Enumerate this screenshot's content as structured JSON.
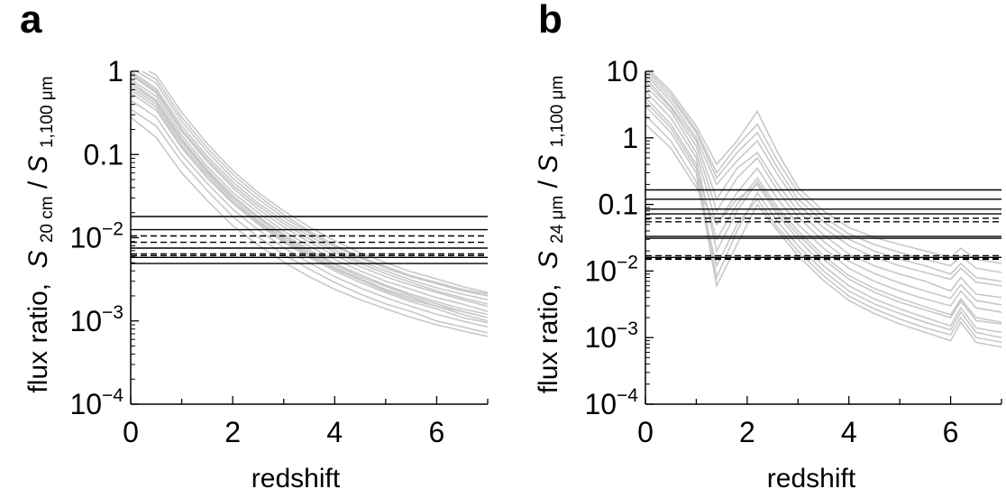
{
  "chart_data": [
    {
      "type": "line",
      "panel_label": "a",
      "xlabel": "redshift",
      "ylabel": {
        "prefix": "flux ratio,",
        "numerator_symbol": "S",
        "numerator_subscript": "20 cm",
        "denominator_symbol": "S",
        "denominator_subscript": "1,100 μm"
      },
      "xlim": [
        0,
        7
      ],
      "ylim": [
        0.0001,
        1
      ],
      "yscale": "log",
      "xticks": [
        0,
        2,
        4,
        6
      ],
      "yticks": [
        {
          "value": 1,
          "base": "1",
          "exp": ""
        },
        {
          "value": 0.1,
          "base": "0.1",
          "exp": ""
        },
        {
          "value": 0.01,
          "base": "10",
          "exp": "−2"
        },
        {
          "value": 0.001,
          "base": "10",
          "exp": "−3"
        },
        {
          "value": 0.0001,
          "base": "10",
          "exp": "−4"
        }
      ],
      "grid": false,
      "series_color": "#c8c8c8",
      "x": [
        0,
        0.5,
        1,
        1.5,
        2,
        2.5,
        3,
        3.5,
        4,
        4.5,
        5,
        5.5,
        6,
        6.5,
        7
      ],
      "series": [
        {
          "values": [
            1.2,
            0.8,
            0.28,
            0.12,
            0.058,
            0.032,
            0.019,
            0.012,
            0.0082,
            0.0059,
            0.0045,
            0.0035,
            0.0029,
            0.0024,
            0.0021
          ]
        },
        {
          "values": [
            1.0,
            0.62,
            0.22,
            0.095,
            0.047,
            0.026,
            0.016,
            0.0105,
            0.0072,
            0.0052,
            0.004,
            0.0031,
            0.0025,
            0.0021,
            0.0018
          ]
        },
        {
          "values": [
            0.9,
            0.55,
            0.19,
            0.082,
            0.04,
            0.022,
            0.0135,
            0.0089,
            0.0061,
            0.0045,
            0.0034,
            0.0027,
            0.0022,
            0.0018,
            0.0015
          ]
        },
        {
          "values": [
            0.8,
            0.5,
            0.17,
            0.072,
            0.035,
            0.02,
            0.012,
            0.0079,
            0.0055,
            0.004,
            0.003,
            0.0024,
            0.0019,
            0.0016,
            0.0013
          ]
        },
        {
          "values": [
            0.75,
            0.45,
            0.155,
            0.066,
            0.032,
            0.018,
            0.011,
            0.0072,
            0.0049,
            0.0036,
            0.0027,
            0.0021,
            0.0017,
            0.0014,
            0.0012
          ]
        },
        {
          "values": [
            0.65,
            0.4,
            0.14,
            0.06,
            0.029,
            0.016,
            0.0098,
            0.0064,
            0.0044,
            0.0032,
            0.0024,
            0.0019,
            0.0015,
            0.0013,
            0.0011
          ]
        },
        {
          "values": [
            0.55,
            0.34,
            0.12,
            0.052,
            0.026,
            0.0145,
            0.0088,
            0.0058,
            0.004,
            0.0029,
            0.0022,
            0.0017,
            0.0014,
            0.0011,
            0.00095
          ]
        },
        {
          "values": [
            0.45,
            0.28,
            0.1,
            0.045,
            0.022,
            0.0125,
            0.0076,
            0.005,
            0.0034,
            0.0025,
            0.0019,
            0.0015,
            0.0012,
            0.001,
            0.00085
          ]
        },
        {
          "values": [
            0.35,
            0.22,
            0.082,
            0.037,
            0.018,
            0.0102,
            0.0063,
            0.0042,
            0.0029,
            0.0021,
            0.0016,
            0.0013,
            0.001,
            0.00085,
            0.00072
          ]
        },
        {
          "values": [
            0.28,
            0.16,
            0.06,
            0.028,
            0.014,
            0.0082,
            0.0051,
            0.0034,
            0.0024,
            0.0018,
            0.0014,
            0.0011,
            0.0009,
            0.00076,
            0.00065
          ]
        },
        {
          "values": [
            1.1,
            0.72,
            0.25,
            0.108,
            0.052,
            0.029,
            0.0175,
            0.0114,
            0.0078,
            0.0057,
            0.0043,
            0.0034,
            0.0028,
            0.0023,
            0.002
          ]
        },
        {
          "values": [
            0.95,
            0.58,
            0.2,
            0.088,
            0.043,
            0.024,
            0.0148,
            0.0097,
            0.0067,
            0.0049,
            0.0037,
            0.0029,
            0.0023,
            0.0019,
            0.0016
          ]
        },
        {
          "values": [
            0.7,
            0.43,
            0.148,
            0.063,
            0.031,
            0.0172,
            0.0104,
            0.0068,
            0.0047,
            0.0034,
            0.0026,
            0.002,
            0.0016,
            0.0013,
            0.0011
          ]
        },
        {
          "values": [
            0.6,
            0.37,
            0.128,
            0.056,
            0.027,
            0.0152,
            0.0093,
            0.0061,
            0.0042,
            0.0031,
            0.0023,
            0.0018,
            0.0015,
            0.0012,
            0.001
          ]
        },
        {
          "values": [
            1.3,
            0.9,
            0.32,
            0.135,
            0.064,
            0.035,
            0.021,
            0.0135,
            0.0092,
            0.0066,
            0.005,
            0.0039,
            0.0032,
            0.0026,
            0.0022
          ]
        }
      ],
      "hlines": [
        {
          "y": 0.018,
          "style": "solid"
        },
        {
          "y": 0.0125,
          "style": "solid"
        },
        {
          "y": 0.0105,
          "style": "dashed"
        },
        {
          "y": 0.0088,
          "style": "dashed"
        },
        {
          "y": 0.0075,
          "style": "solid"
        },
        {
          "y": 0.0064,
          "style": "dashed"
        },
        {
          "y": 0.0061,
          "style": "dashed"
        },
        {
          "y": 0.0058,
          "style": "solid"
        },
        {
          "y": 0.0049,
          "style": "solid"
        }
      ]
    },
    {
      "type": "line",
      "panel_label": "b",
      "xlabel": "redshift",
      "ylabel": {
        "prefix": "flux ratio,",
        "numerator_symbol": "S",
        "numerator_subscript": "24 μm",
        "denominator_symbol": "S",
        "denominator_subscript": "1,100 μm"
      },
      "xlim": [
        0,
        7
      ],
      "ylim": [
        0.0001,
        10
      ],
      "yscale": "log",
      "xticks": [
        0,
        2,
        4,
        6
      ],
      "yticks": [
        {
          "value": 10,
          "base": "10",
          "exp": ""
        },
        {
          "value": 1,
          "base": "1",
          "exp": ""
        },
        {
          "value": 0.1,
          "base": "0.1",
          "exp": ""
        },
        {
          "value": 0.01,
          "base": "10",
          "exp": "−2"
        },
        {
          "value": 0.001,
          "base": "10",
          "exp": "−3"
        },
        {
          "value": 0.0001,
          "base": "10",
          "exp": "−4"
        }
      ],
      "grid": false,
      "series_color": "#c8c8c8",
      "x": [
        0,
        0.5,
        1,
        1.4,
        1.8,
        2.2,
        2.6,
        3,
        3.5,
        4,
        4.5,
        5,
        5.5,
        6,
        6.2,
        6.5,
        7
      ],
      "series": [
        {
          "values": [
            12,
            5,
            1.5,
            0.4,
            0.9,
            2.5,
            0.6,
            0.18,
            0.08,
            0.045,
            0.032,
            0.025,
            0.02,
            0.016,
            0.022,
            0.015,
            0.013
          ]
        },
        {
          "values": [
            10,
            4,
            1.2,
            0.25,
            0.6,
            1.2,
            0.35,
            0.12,
            0.055,
            0.03,
            0.02,
            0.015,
            0.012,
            0.009,
            0.013,
            0.008,
            0.007
          ]
        },
        {
          "values": [
            8,
            3,
            0.9,
            0.12,
            0.35,
            0.6,
            0.2,
            0.08,
            0.035,
            0.018,
            0.012,
            0.009,
            0.007,
            0.005,
            0.008,
            0.0045,
            0.004
          ]
        },
        {
          "values": [
            6,
            2.5,
            0.6,
            0.05,
            0.15,
            0.35,
            0.12,
            0.05,
            0.022,
            0.011,
            0.007,
            0.005,
            0.0038,
            0.003,
            0.005,
            0.0028,
            0.0024
          ]
        },
        {
          "values": [
            5,
            2,
            0.5,
            0.02,
            0.08,
            0.22,
            0.08,
            0.035,
            0.015,
            0.0075,
            0.0048,
            0.0034,
            0.0026,
            0.002,
            0.0035,
            0.0018,
            0.0016
          ]
        },
        {
          "values": [
            4,
            1.6,
            0.4,
            0.008,
            0.04,
            0.15,
            0.055,
            0.024,
            0.01,
            0.005,
            0.0032,
            0.0023,
            0.0017,
            0.0013,
            0.0024,
            0.0012,
            0.001
          ]
        },
        {
          "values": [
            3,
            1.2,
            0.3,
            0.006,
            0.025,
            0.1,
            0.04,
            0.017,
            0.0072,
            0.0036,
            0.0023,
            0.0016,
            0.0012,
            0.0009,
            0.0017,
            0.00085,
            0.00072
          ]
        },
        {
          "values": [
            2.2,
            0.9,
            0.22,
            0.012,
            0.05,
            0.12,
            0.045,
            0.02,
            0.0085,
            0.0042,
            0.0027,
            0.0019,
            0.0014,
            0.0011,
            0.002,
            0.001,
            0.00085
          ]
        },
        {
          "values": [
            1.6,
            0.7,
            0.18,
            0.05,
            0.12,
            0.2,
            0.07,
            0.03,
            0.012,
            0.006,
            0.0038,
            0.0027,
            0.002,
            0.0015,
            0.0028,
            0.0014,
            0.0012
          ]
        },
        {
          "values": [
            9,
            3.5,
            1.0,
            0.2,
            0.45,
            0.9,
            0.28,
            0.1,
            0.045,
            0.024,
            0.016,
            0.012,
            0.0095,
            0.0075,
            0.011,
            0.0068,
            0.006
          ]
        },
        {
          "values": [
            7,
            2.8,
            0.75,
            0.08,
            0.25,
            0.5,
            0.16,
            0.065,
            0.028,
            0.014,
            0.0092,
            0.0066,
            0.005,
            0.0039,
            0.0062,
            0.0036,
            0.0031
          ]
        },
        {
          "values": [
            11,
            4.5,
            1.3,
            0.3,
            0.75,
            1.6,
            0.45,
            0.15,
            0.065,
            0.036,
            0.025,
            0.019,
            0.015,
            0.012,
            0.017,
            0.011,
            0.0095
          ]
        },
        {
          "values": [
            3.5,
            1.4,
            0.35,
            0.03,
            0.1,
            0.25,
            0.09,
            0.04,
            0.017,
            0.0085,
            0.0055,
            0.0039,
            0.0029,
            0.0022,
            0.0038,
            0.002,
            0.0017
          ]
        }
      ],
      "hlines": [
        {
          "y": 0.165,
          "style": "solid"
        },
        {
          "y": 0.12,
          "style": "solid"
        },
        {
          "y": 0.085,
          "style": "solid"
        },
        {
          "y": 0.072,
          "style": "solid"
        },
        {
          "y": 0.062,
          "style": "dashed"
        },
        {
          "y": 0.055,
          "style": "dashed"
        },
        {
          "y": 0.033,
          "style": "solid"
        },
        {
          "y": 0.031,
          "style": "solid"
        },
        {
          "y": 0.017,
          "style": "dashed"
        },
        {
          "y": 0.016,
          "style": "solid"
        },
        {
          "y": 0.0155,
          "style": "dashed"
        },
        {
          "y": 0.015,
          "style": "dashed"
        }
      ]
    }
  ]
}
